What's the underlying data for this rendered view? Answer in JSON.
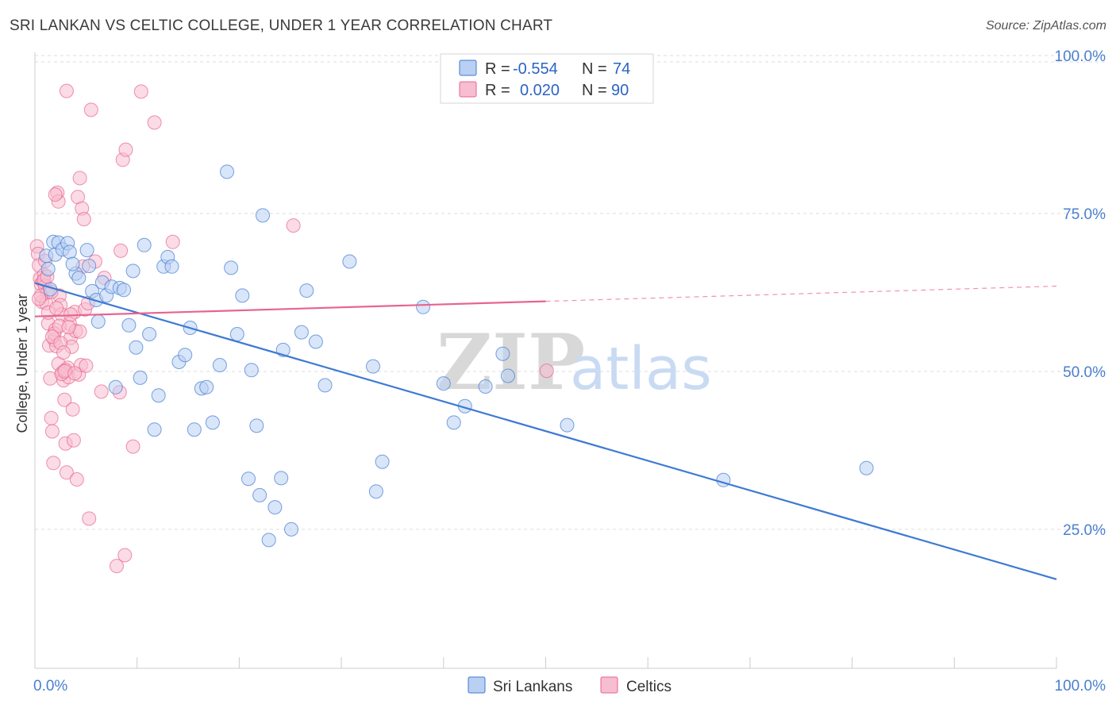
{
  "title": "SRI LANKAN VS CELTIC COLLEGE, UNDER 1 YEAR CORRELATION CHART",
  "source": "Source: ZipAtlas.com",
  "watermark": {
    "zip": "ZIP",
    "atlas": "atlas"
  },
  "colors": {
    "blue": "#3e7ad3",
    "blue_fill": "#b9d0f2",
    "pink": "#e8648f",
    "pink_fill": "#f7bdd0",
    "tick_text": "#4a7fd0",
    "grid": "#dddddd"
  },
  "legend": {
    "rows": [
      {
        "r_label": "R =",
        "r_value": "-0.554",
        "n_label": "N =",
        "n_value": "74"
      },
      {
        "r_label": "R =",
        "r_value": "0.020",
        "n_label": "N =",
        "n_value": "90"
      }
    ]
  },
  "bottom_legend": [
    "Sri Lankans",
    "Celtics"
  ],
  "chart_data": {
    "type": "scatter",
    "xlabel": "",
    "ylabel": "College, Under 1 year",
    "xlim": [
      0,
      100
    ],
    "ylim": [
      3,
      100
    ],
    "x_tick_labels": [
      {
        "value": 0,
        "label": "0.0%"
      },
      {
        "value": 100,
        "label": "100.0%"
      }
    ],
    "y_tick_labels": [
      {
        "value": 25,
        "label": "25.0%"
      },
      {
        "value": 50,
        "label": "50.0%"
      },
      {
        "value": 75,
        "label": "75.0%"
      },
      {
        "value": 100,
        "label": "100.0%"
      }
    ],
    "grid": true,
    "legend_position": "top-center",
    "series": [
      {
        "name": "Sri Lankans",
        "r": -0.554,
        "n": 74,
        "trend": {
          "x0": 0,
          "y0": 64.0,
          "x1": 100,
          "y1": 17.1
        },
        "points": [
          [
            1.1,
            68.3
          ],
          [
            1.3,
            66.2
          ],
          [
            1.8,
            70.5
          ],
          [
            2.0,
            68.5
          ],
          [
            2.3,
            70.4
          ],
          [
            2.7,
            69.3
          ],
          [
            3.2,
            70.3
          ],
          [
            3.4,
            68.9
          ],
          [
            4.0,
            65.5
          ],
          [
            4.3,
            64.8
          ],
          [
            5.1,
            69.2
          ],
          [
            5.3,
            66.7
          ],
          [
            5.6,
            62.7
          ],
          [
            6.0,
            61.3
          ],
          [
            6.2,
            57.9
          ],
          [
            6.6,
            64.1
          ],
          [
            7.0,
            62.0
          ],
          [
            7.5,
            63.4
          ],
          [
            7.9,
            47.5
          ],
          [
            8.3,
            63.2
          ],
          [
            8.7,
            62.9
          ],
          [
            9.2,
            57.3
          ],
          [
            9.6,
            65.9
          ],
          [
            9.9,
            53.8
          ],
          [
            10.3,
            49.0
          ],
          [
            10.7,
            70.0
          ],
          [
            11.2,
            55.9
          ],
          [
            11.7,
            40.8
          ],
          [
            12.1,
            46.2
          ],
          [
            12.6,
            66.6
          ],
          [
            13.0,
            68.1
          ],
          [
            13.4,
            66.6
          ],
          [
            14.1,
            51.5
          ],
          [
            14.7,
            52.6
          ],
          [
            15.2,
            56.9
          ],
          [
            15.6,
            40.8
          ],
          [
            16.3,
            47.3
          ],
          [
            16.8,
            47.5
          ],
          [
            17.4,
            41.9
          ],
          [
            18.1,
            51.0
          ],
          [
            18.8,
            81.6
          ],
          [
            19.2,
            66.4
          ],
          [
            19.8,
            55.9
          ],
          [
            20.3,
            62.0
          ],
          [
            20.9,
            33.0
          ],
          [
            21.2,
            50.2
          ],
          [
            21.7,
            41.4
          ],
          [
            22.0,
            30.4
          ],
          [
            22.3,
            74.7
          ],
          [
            22.9,
            23.3
          ],
          [
            23.5,
            28.5
          ],
          [
            24.1,
            33.1
          ],
          [
            24.3,
            53.4
          ],
          [
            25.1,
            25.0
          ],
          [
            26.1,
            56.2
          ],
          [
            26.6,
            62.8
          ],
          [
            27.5,
            54.7
          ],
          [
            28.4,
            47.8
          ],
          [
            30.8,
            67.4
          ],
          [
            33.1,
            50.8
          ],
          [
            33.4,
            31.0
          ],
          [
            34.0,
            35.7
          ],
          [
            38.0,
            60.2
          ],
          [
            40.0,
            48.1
          ],
          [
            41.0,
            41.9
          ],
          [
            42.1,
            44.5
          ],
          [
            44.1,
            47.6
          ],
          [
            45.8,
            52.8
          ],
          [
            46.3,
            49.3
          ],
          [
            52.1,
            41.5
          ],
          [
            67.4,
            32.8
          ],
          [
            81.4,
            34.7
          ],
          [
            1.5,
            63.0
          ],
          [
            3.7,
            67.0
          ]
        ]
      },
      {
        "name": "Celtics",
        "r": 0.02,
        "n": 90,
        "trend": {
          "x0": 0,
          "y0": 58.7,
          "x1": 50,
          "y1": 61.1,
          "dash_to": {
            "x": 100,
            "y": 63.5
          }
        },
        "points": [
          [
            0.2,
            69.8
          ],
          [
            0.3,
            68.6
          ],
          [
            0.4,
            66.8
          ],
          [
            0.5,
            64.7
          ],
          [
            0.6,
            63.8
          ],
          [
            0.7,
            61.0
          ],
          [
            0.8,
            64.2
          ],
          [
            0.9,
            65.3
          ],
          [
            1.0,
            63.5
          ],
          [
            1.1,
            60.8
          ],
          [
            1.2,
            62.5
          ],
          [
            1.3,
            57.6
          ],
          [
            1.4,
            54.1
          ],
          [
            1.5,
            48.9
          ],
          [
            1.6,
            42.6
          ],
          [
            1.7,
            40.5
          ],
          [
            1.8,
            35.5
          ],
          [
            1.9,
            55.0
          ],
          [
            2.0,
            56.6
          ],
          [
            2.1,
            54.0
          ],
          [
            2.2,
            78.3
          ],
          [
            2.3,
            76.9
          ],
          [
            2.4,
            62.0
          ],
          [
            2.5,
            60.5
          ],
          [
            2.6,
            59.0
          ],
          [
            2.7,
            49.9
          ],
          [
            2.8,
            48.6
          ],
          [
            2.9,
            45.5
          ],
          [
            3.0,
            38.6
          ],
          [
            3.1,
            34.0
          ],
          [
            3.2,
            50.6
          ],
          [
            3.3,
            49.1
          ],
          [
            3.4,
            57.6
          ],
          [
            3.5,
            55.3
          ],
          [
            3.6,
            53.9
          ],
          [
            3.7,
            44.0
          ],
          [
            3.8,
            39.1
          ],
          [
            3.9,
            59.4
          ],
          [
            4.0,
            56.4
          ],
          [
            4.1,
            32.9
          ],
          [
            4.2,
            77.6
          ],
          [
            4.3,
            49.5
          ],
          [
            4.4,
            80.6
          ],
          [
            4.5,
            51.0
          ],
          [
            4.6,
            75.8
          ],
          [
            4.7,
            66.6
          ],
          [
            4.8,
            74.1
          ],
          [
            4.9,
            59.8
          ],
          [
            5.0,
            50.9
          ],
          [
            5.3,
            26.7
          ],
          [
            5.5,
            91.4
          ],
          [
            5.9,
            67.4
          ],
          [
            6.5,
            46.8
          ],
          [
            6.8,
            64.8
          ],
          [
            8.0,
            19.2
          ],
          [
            8.3,
            46.7
          ],
          [
            8.4,
            69.1
          ],
          [
            8.6,
            83.5
          ],
          [
            8.8,
            20.9
          ],
          [
            8.9,
            85.1
          ],
          [
            9.6,
            38.1
          ],
          [
            10.4,
            94.3
          ],
          [
            11.7,
            89.4
          ],
          [
            13.5,
            70.5
          ],
          [
            25.3,
            73.1
          ],
          [
            50.1,
            50.1
          ],
          [
            3.1,
            94.4
          ],
          [
            2.0,
            78.0
          ],
          [
            1.0,
            67.5
          ],
          [
            0.6,
            62.0
          ],
          [
            1.9,
            56.0
          ],
          [
            2.3,
            51.2
          ],
          [
            2.6,
            49.6
          ],
          [
            3.0,
            50.2
          ],
          [
            1.3,
            59.3
          ],
          [
            0.9,
            64.5
          ],
          [
            2.1,
            60.0
          ],
          [
            2.4,
            57.2
          ],
          [
            3.5,
            59.0
          ],
          [
            4.4,
            56.3
          ],
          [
            1.7,
            55.5
          ],
          [
            2.9,
            50.0
          ],
          [
            3.3,
            57.0
          ],
          [
            0.4,
            61.5
          ],
          [
            1.2,
            65.0
          ],
          [
            2.5,
            54.5
          ],
          [
            5.2,
            60.8
          ],
          [
            3.9,
            49.7
          ],
          [
            2.8,
            53.0
          ],
          [
            1.6,
            62.6
          ]
        ]
      }
    ]
  }
}
